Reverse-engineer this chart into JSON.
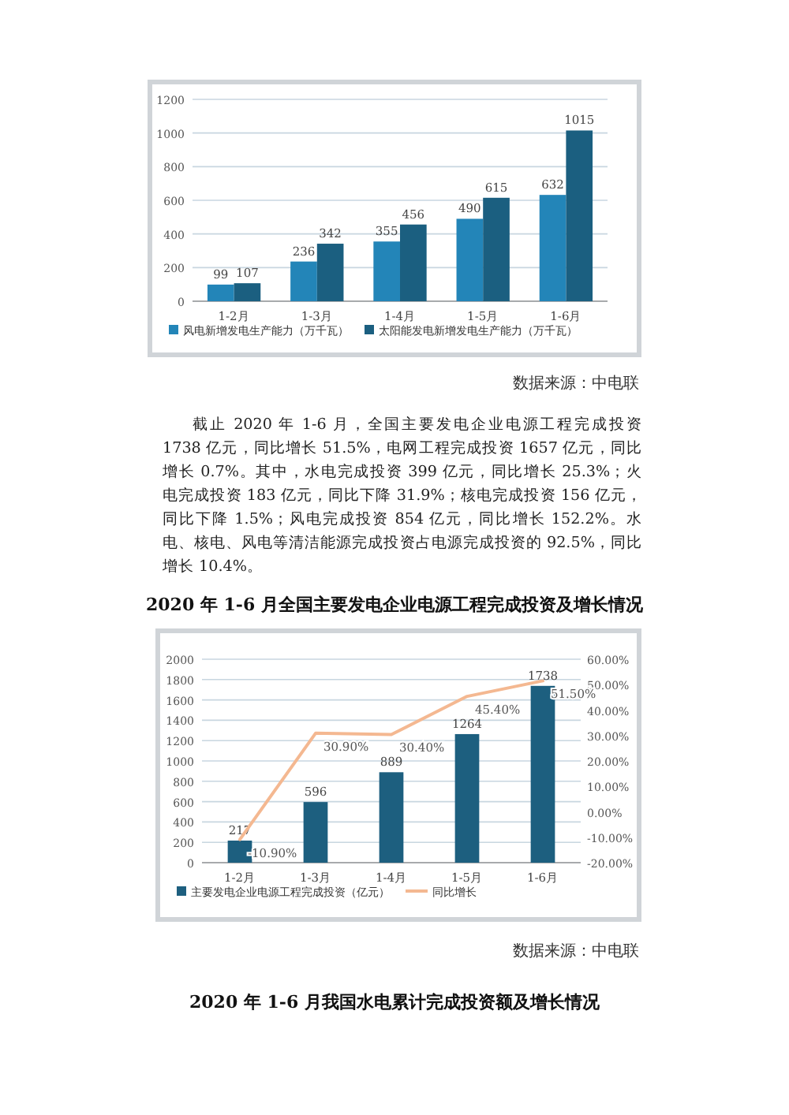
{
  "chart_data": [
    {
      "type": "bar",
      "categories": [
        "1-2月",
        "1-3月",
        "1-4月",
        "1-5月",
        "1-6月"
      ],
      "series": [
        {
          "name": "风电新增发电生产能力（万千瓦）",
          "color": "#2385b8",
          "values": [
            99,
            236,
            355,
            490,
            632
          ]
        },
        {
          "name": "太阳能发电新增发电生产能力（万千瓦）",
          "color": "#1b5f80",
          "values": [
            107,
            342,
            456,
            615,
            1015
          ]
        }
      ],
      "ylim": [
        0,
        1200
      ],
      "yticks": [
        0,
        200,
        400,
        600,
        800,
        1000,
        1200
      ],
      "grid": "y",
      "legend": "bottom",
      "data_labels": true,
      "annotations": [
        "数据来源：中电联"
      ]
    },
    {
      "type": "other",
      "annotations": [
        "截止 2020 年 1-6 月，全国主要发电企业电源工程完成投资 1738 亿元，同比增长 51.5%，电网工程完成投资 1657 亿元，同比增长 0.7%。其中，水电完成投资 399 亿元，同比增长 25.3%；火电完成投资 183 亿元，同比下降 31.9%；核电完成投资 156 亿元，同比下降 1.5%；风电完成投资 854 亿元，同比增长 152.2%。水电、核电、风电等清洁能源完成投资占电源完成投资的 92.5%，同比增长 10.4%。"
      ]
    },
    {
      "type": "bar",
      "title": "2020 年 1-6 月全国主要发电企业电源工程完成投资及增长情况",
      "categories": [
        "1-2月",
        "1-3月",
        "1-4月",
        "1-5月",
        "1-6月"
      ],
      "series": [
        {
          "name": "主要发电企业电源工程完成投资（亿元）",
          "color": "#1d5f7f",
          "values": [
            217,
            596,
            889,
            1264,
            1738
          ],
          "value_labels": [
            "217",
            "596",
            "889",
            "1264",
            "1738"
          ]
        },
        {
          "name": "同比增长",
          "type": "line",
          "axis": "y2",
          "color": "#f4b891",
          "values": [
            -10.9,
            30.9,
            30.4,
            45.4,
            51.5
          ],
          "value_labels": [
            "-10.90%",
            "30.90%",
            "30.40%",
            "45.40%",
            "51.50%"
          ]
        }
      ],
      "ylim": [
        0,
        2000
      ],
      "yticks": [
        0,
        200,
        400,
        600,
        800,
        1000,
        1200,
        1400,
        1600,
        1800,
        2000
      ],
      "y2lim": [
        -20,
        60
      ],
      "y2ticks": [
        {
          "value": -20,
          "label": "-20.00%"
        },
        {
          "value": -10,
          "label": "-10.00%"
        },
        {
          "value": 0,
          "label": "0.00%"
        },
        {
          "value": 10,
          "label": "10.00%"
        },
        {
          "value": 20,
          "label": "20.00%"
        },
        {
          "value": 30,
          "label": "30.00%"
        },
        {
          "value": 40,
          "label": "40.00%"
        },
        {
          "value": 50,
          "label": "50.00%"
        },
        {
          "value": 60,
          "label": "60.00%"
        }
      ],
      "grid": "y",
      "legend": "bottom",
      "annotations": [
        "数据来源：中电联"
      ]
    },
    {
      "type": "other",
      "title": "2020 年 1-6 月我国水电累计完成投资额及增长情况"
    }
  ]
}
